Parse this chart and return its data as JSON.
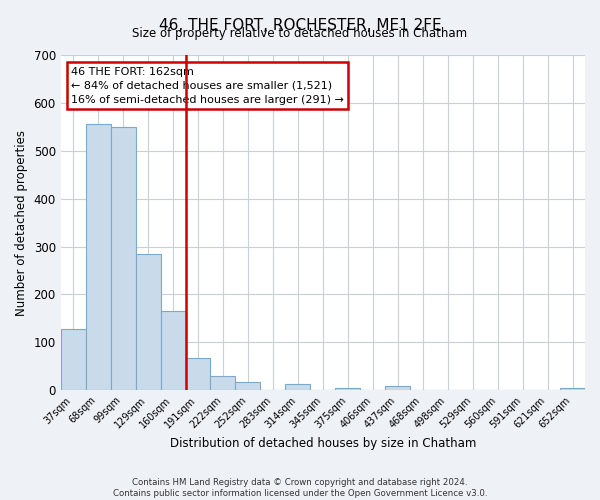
{
  "title": "46, THE FORT, ROCHESTER, ME1 2FE",
  "subtitle": "Size of property relative to detached houses in Chatham",
  "xlabel": "Distribution of detached houses by size in Chatham",
  "ylabel": "Number of detached properties",
  "bin_labels": [
    "37sqm",
    "68sqm",
    "99sqm",
    "129sqm",
    "160sqm",
    "191sqm",
    "222sqm",
    "252sqm",
    "283sqm",
    "314sqm",
    "345sqm",
    "375sqm",
    "406sqm",
    "437sqm",
    "468sqm",
    "498sqm",
    "529sqm",
    "560sqm",
    "591sqm",
    "621sqm",
    "652sqm"
  ],
  "bar_heights": [
    128,
    555,
    550,
    285,
    165,
    68,
    30,
    18,
    0,
    13,
    0,
    5,
    0,
    8,
    0,
    0,
    0,
    0,
    0,
    0,
    5
  ],
  "bar_color": "#c9daea",
  "bar_edge_color": "#7aaac8",
  "vline_color": "#cc0000",
  "annotation_line1": "46 THE FORT: 162sqm",
  "annotation_line2": "← 84% of detached houses are smaller (1,521)",
  "annotation_line3": "16% of semi-detached houses are larger (291) →",
  "ylim": [
    0,
    700
  ],
  "yticks": [
    0,
    100,
    200,
    300,
    400,
    500,
    600,
    700
  ],
  "footer_text": "Contains HM Land Registry data © Crown copyright and database right 2024.\nContains public sector information licensed under the Open Government Licence v3.0.",
  "bg_color": "#eef2f6",
  "plot_bg_color": "#ffffff",
  "grid_color": "#c8d0da"
}
